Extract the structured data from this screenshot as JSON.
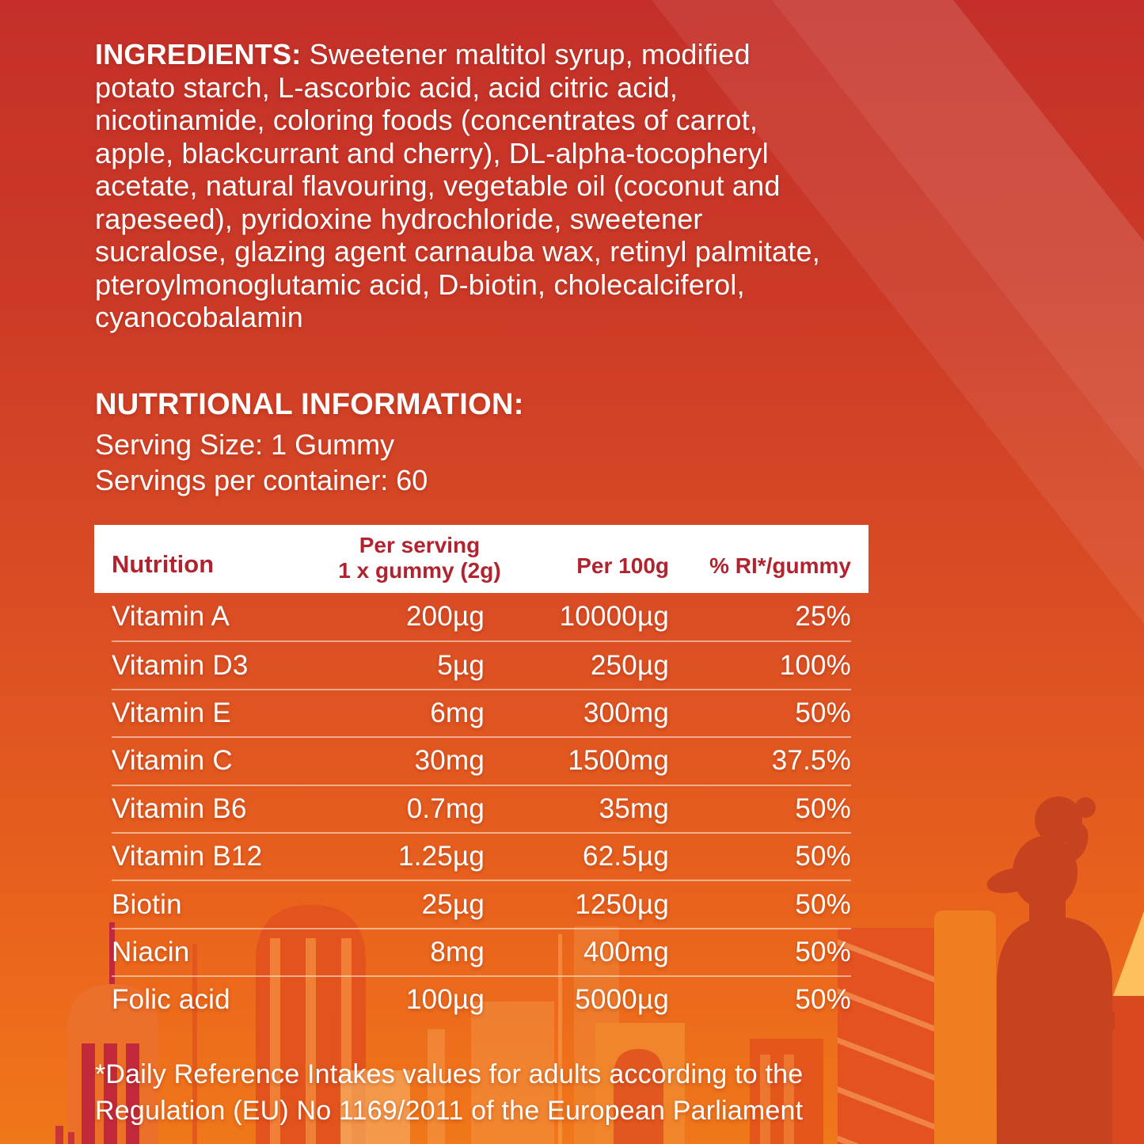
{
  "label": {
    "ingredients": {
      "title": "INGREDIENTS:",
      "text": "Sweetener maltitol syrup, modified potato starch, L-ascorbic acid, acid citric acid, nicotinamide, coloring foods (concentrates of carrot, apple, blackcurrant and cherry), DL-alpha-tocopheryl acetate, natural flavouring, vegetable oil (coconut and rapeseed), pyridoxine hydrochloride, sweetener sucralose, glazing agent carnauba wax, retinyl palmitate, pteroylmonoglutamic acid, D-biotin, cholecalciferol, cyanocobalamin"
    },
    "nutrition_info": {
      "title": "NUTRTIONAL INFORMATION:",
      "serving_size": "Serving Size: 1 Gummy",
      "servings_per_container": "Servings per container: 60"
    },
    "table": {
      "headers": {
        "nutrition": "Nutrition",
        "per_serving_line1": "Per serving",
        "per_serving_line2": "1 x gummy (2g)",
        "per_100g": "Per 100g",
        "ri": "% RI*/gummy"
      },
      "rows": [
        {
          "name": "Vitamin A",
          "per_serving": "200µg",
          "per_100g": "10000µg",
          "ri": "25%"
        },
        {
          "name": "Vitamin D3",
          "per_serving": "5µg",
          "per_100g": "250µg",
          "ri": "100%"
        },
        {
          "name": "Vitamin E",
          "per_serving": "6mg",
          "per_100g": "300mg",
          "ri": "50%"
        },
        {
          "name": "Vitamin C",
          "per_serving": "30mg",
          "per_100g": "1500mg",
          "ri": "37.5%"
        },
        {
          "name": "Vitamin B6",
          "per_serving": "0.7mg",
          "per_100g": "35mg",
          "ri": "50%"
        },
        {
          "name": "Vitamin B12",
          "per_serving": "1.25µg",
          "per_100g": "62.5µg",
          "ri": "50%"
        },
        {
          "name": "Biotin",
          "per_serving": "25µg",
          "per_100g": "1250µg",
          "ri": "50%"
        },
        {
          "name": "Niacin",
          "per_serving": "8mg",
          "per_100g": "400mg",
          "ri": "50%"
        },
        {
          "name": "Folic acid",
          "per_serving": "100µg",
          "per_100g": "5000µg",
          "ri": "50%"
        }
      ]
    },
    "footnote": {
      "line1": "*Daily Reference Intakes values for adults according to the",
      "line2": "Regulation (EU) No 1169/2011 of the European Parliament"
    }
  },
  "colors": {
    "background_top": "#c43029",
    "background_bottom": "#f0771a",
    "table_header_bg": "#ffffff",
    "table_header_text": "#b1232e",
    "body_text": "#ffffff",
    "skyline_dark": "#e2531d",
    "skyline_crimson": "#c22a3c",
    "statue_red": "#c7421f",
    "yellow_streak": "#fcc15b"
  }
}
